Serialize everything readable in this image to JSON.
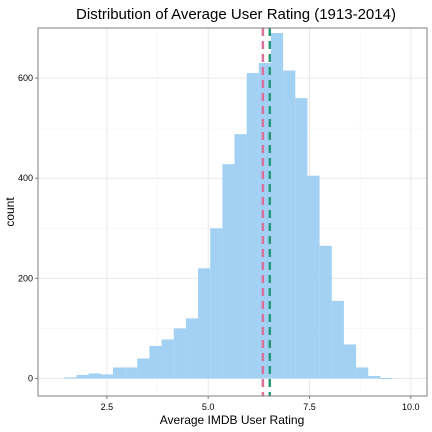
{
  "chart_data": {
    "type": "bar",
    "title": "Distribution of Average User Rating (1913-2014)",
    "xlabel": "Average IMDB User Rating",
    "ylabel": "count",
    "xlim": [
      0.8,
      10.4
    ],
    "ylim": [
      -35,
      700
    ],
    "x_ticks": [
      {
        "value": 2.5,
        "label": "2.5"
      },
      {
        "value": 5.0,
        "label": "5.0"
      },
      {
        "value": 7.5,
        "label": "7.5"
      },
      {
        "value": 10.0,
        "label": "10.0"
      }
    ],
    "y_ticks": [
      {
        "value": 0,
        "label": "0"
      },
      {
        "value": 200,
        "label": "200"
      },
      {
        "value": 400,
        "label": "400"
      },
      {
        "value": 600,
        "label": "600"
      }
    ],
    "grid": true,
    "bin_width": 0.3,
    "bars": [
      {
        "x": 1.6,
        "count": 2
      },
      {
        "x": 1.9,
        "count": 7
      },
      {
        "x": 2.2,
        "count": 10
      },
      {
        "x": 2.5,
        "count": 8
      },
      {
        "x": 2.8,
        "count": 22
      },
      {
        "x": 3.1,
        "count": 22
      },
      {
        "x": 3.4,
        "count": 40
      },
      {
        "x": 3.7,
        "count": 65
      },
      {
        "x": 4.0,
        "count": 78
      },
      {
        "x": 4.3,
        "count": 100
      },
      {
        "x": 4.6,
        "count": 120
      },
      {
        "x": 4.9,
        "count": 220
      },
      {
        "x": 5.2,
        "count": 300
      },
      {
        "x": 5.5,
        "count": 428
      },
      {
        "x": 5.8,
        "count": 488
      },
      {
        "x": 6.1,
        "count": 610
      },
      {
        "x": 6.4,
        "count": 630
      },
      {
        "x": 6.7,
        "count": 690
      },
      {
        "x": 7.0,
        "count": 615
      },
      {
        "x": 7.3,
        "count": 560
      },
      {
        "x": 7.6,
        "count": 405
      },
      {
        "x": 7.9,
        "count": 265
      },
      {
        "x": 8.2,
        "count": 155
      },
      {
        "x": 8.5,
        "count": 68
      },
      {
        "x": 8.8,
        "count": 22
      },
      {
        "x": 9.1,
        "count": 5
      },
      {
        "x": 9.4,
        "count": 1
      }
    ],
    "bar_color": "#9DCFF2",
    "vlines": [
      {
        "x": 6.35,
        "color": "#D9719E"
      },
      {
        "x": 6.52,
        "color": "#25997A"
      }
    ]
  }
}
